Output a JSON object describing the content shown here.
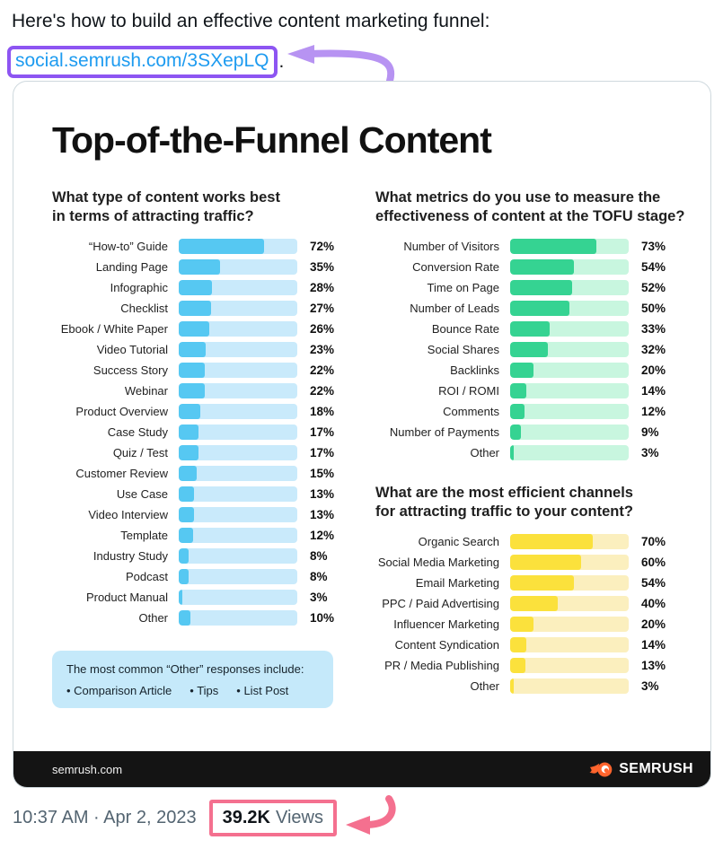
{
  "tweet": {
    "text": "Here's how to build an effective content marketing funnel:",
    "link": "social.semrush.com/3SXepLQ",
    "period": ".",
    "timestamp": "10:37 AM · Apr 2, 2023",
    "views_count": "39.2K",
    "views_label": "Views"
  },
  "infographic": {
    "title": "Top-of-the-Funnel Content",
    "note": {
      "heading": "The most common “Other” responses include:",
      "items": [
        "Comparison Article",
        "Tips",
        "List Post"
      ]
    },
    "footer": {
      "site": "semrush.com",
      "brand": "SEMRUSH"
    }
  },
  "chart_data": [
    {
      "type": "bar",
      "question": "What type of content works best\nin terms of attracting traffic?",
      "categories": [
        "“How-to” Guide",
        "Landing Page",
        "Infographic",
        "Checklist",
        "Ebook / White Paper",
        "Video Tutorial",
        "Success Story",
        "Webinar",
        "Product Overview",
        "Case Study",
        "Quiz / Test",
        "Customer Review",
        "Use Case",
        "Video Interview",
        "Template",
        "Industry Study",
        "Podcast",
        "Product Manual",
        "Other"
      ],
      "values": [
        72,
        35,
        28,
        27,
        26,
        23,
        22,
        22,
        18,
        17,
        17,
        15,
        13,
        13,
        12,
        8,
        8,
        3,
        10
      ],
      "unit": "%",
      "xlim": [
        0,
        100
      ],
      "fill_color": "#56c8f2",
      "track_color": "#c9eafb"
    },
    {
      "type": "bar",
      "question": "What metrics do you use to measure the\neffectiveness of content at the TOFU stage?",
      "categories": [
        "Number of Visitors",
        "Conversion Rate",
        "Time on Page",
        "Number of Leads",
        "Bounce Rate",
        "Social Shares",
        "Backlinks",
        "ROI / ROMI",
        "Comments",
        "Number of Payments",
        "Other"
      ],
      "values": [
        73,
        54,
        52,
        50,
        33,
        32,
        20,
        14,
        12,
        9,
        3
      ],
      "unit": "%",
      "xlim": [
        0,
        100
      ],
      "fill_color": "#35d392",
      "track_color": "#c8f6df"
    },
    {
      "type": "bar",
      "question": "What are the most efficient channels\nfor attracting traffic to your content?",
      "categories": [
        "Organic Search",
        "Social Media Marketing",
        "Email Marketing",
        "PPC / Paid Advertising",
        "Influencer Marketing",
        "Content Syndication",
        "PR / Media Publishing",
        "Other"
      ],
      "values": [
        70,
        60,
        54,
        40,
        20,
        14,
        13,
        3
      ],
      "unit": "%",
      "xlim": [
        0,
        100
      ],
      "fill_color": "#fbe13c",
      "track_color": "#fbefbe"
    }
  ],
  "colors": {
    "link_blue": "#1d9bf0",
    "purple_annotation_box": "#8d55f2",
    "purple_arrow": "#b793f2",
    "pink_annotation": "#f4708f",
    "semrush_orange": "#ff642d",
    "footer_black": "#141414",
    "note_box_blue": "#c5e9fa",
    "timestamp_gray": "#536471"
  }
}
